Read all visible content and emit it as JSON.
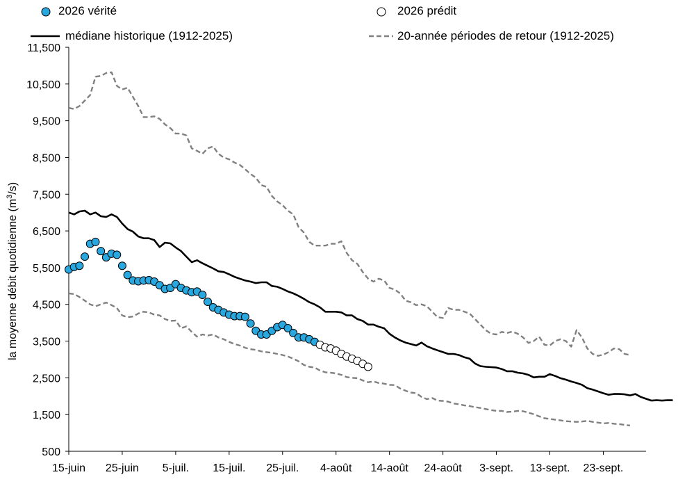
{
  "chart_data": {
    "type": "line",
    "ylabel_main": "la moyenne débit quotidienne (m",
    "ylabel_sup": "3",
    "ylabel_end": "/s)",
    "ylim": [
      500,
      11500
    ],
    "yticks": [
      500,
      1500,
      2500,
      3500,
      4500,
      5500,
      6500,
      7500,
      8500,
      9500,
      10500,
      11500
    ],
    "ytick_labels": [
      "500",
      "1,500",
      "2,500",
      "3,500",
      "4,500",
      "5,500",
      "6,500",
      "7,500",
      "8,500",
      "9,500",
      "10,500",
      "11,500"
    ],
    "x_range_days": [
      0,
      108
    ],
    "xtick_labels": [
      "15-juin",
      "25-juin",
      "5-juil.",
      "15-juil.",
      "25-juil.",
      "4-août",
      "14-août",
      "24-août",
      "3-sept.",
      "13-sept.",
      "23-sept."
    ],
    "xtick_days": [
      0,
      10,
      20,
      30,
      40,
      50,
      60,
      70,
      80,
      90,
      100
    ],
    "legend": {
      "observed": "2026 vérité",
      "predicted": "2026 prédit",
      "median": "médiane historique (1912-2025)",
      "return": "20-année périodes de retour (1912-2025)"
    },
    "series": [
      {
        "name": "médiane historique (1912-2025)",
        "style": "solid",
        "color": "#000000",
        "values": [
          7000,
          6950,
          7030,
          7050,
          6950,
          7000,
          6900,
          6880,
          6950,
          6880,
          6700,
          6550,
          6480,
          6350,
          6300,
          6300,
          6250,
          6060,
          6180,
          6160,
          6050,
          5950,
          5800,
          5650,
          5700,
          5620,
          5550,
          5480,
          5400,
          5380,
          5320,
          5250,
          5200,
          5150,
          5120,
          5080,
          5100,
          5100,
          5000,
          4980,
          4920,
          4850,
          4800,
          4730,
          4650,
          4560,
          4500,
          4420,
          4300,
          4300,
          4300,
          4280,
          4200,
          4200,
          4100,
          4050,
          3950,
          3950,
          3890,
          3850,
          3700,
          3600,
          3520,
          3460,
          3420,
          3380,
          3460,
          3360,
          3300,
          3250,
          3200,
          3150,
          3150,
          3120,
          3060,
          3020,
          2890,
          2820,
          2800,
          2790,
          2780,
          2740,
          2680,
          2680,
          2640,
          2620,
          2580,
          2510,
          2530,
          2530,
          2600,
          2550,
          2490,
          2450,
          2400,
          2360,
          2310,
          2220,
          2180,
          2130,
          2080,
          2040,
          2060,
          2060,
          2050,
          2020,
          2060,
          1980,
          1930,
          1880,
          1890,
          1880,
          1890,
          1890
        ]
      },
      {
        "name": "20-année périodes de retour (1912-2025) haut",
        "style": "dashed",
        "color": "#808080",
        "values": [
          9850,
          9820,
          9900,
          10050,
          10200,
          10700,
          10720,
          10800,
          10820,
          10450,
          10350,
          10400,
          10150,
          9900,
          9600,
          9600,
          9620,
          9550,
          9400,
          9300,
          9150,
          9150,
          9100,
          8750,
          8680,
          8600,
          8750,
          8800,
          8600,
          8500,
          8450,
          8360,
          8300,
          8180,
          8050,
          7950,
          7750,
          7700,
          7450,
          7300,
          7200,
          7050,
          6950,
          6600,
          6450,
          6200,
          6100,
          6100,
          6100,
          6150,
          6150,
          6220,
          5900,
          5700,
          5600,
          5380,
          5200,
          5120,
          5200,
          5150,
          4950,
          4900,
          4800,
          4600,
          4560,
          4480,
          4500,
          4450,
          4300,
          4150,
          4130,
          4400,
          4350,
          4350,
          4300,
          4250,
          4100,
          3950,
          3800,
          3700,
          3680,
          3750,
          3720,
          3760,
          3700,
          3600,
          3450,
          3500,
          3620,
          3400,
          3380,
          3500,
          3550,
          3500,
          3350,
          3800,
          3600,
          3300,
          3150,
          3100,
          3130,
          3200,
          3300,
          3280,
          3150,
          3120
        ]
      },
      {
        "name": "20-année périodes de retour (1912-2025) bas",
        "style": "dashed",
        "color": "#808080",
        "values": [
          4800,
          4780,
          4700,
          4600,
          4500,
          4450,
          4500,
          4550,
          4480,
          4400,
          4200,
          4150,
          4170,
          4250,
          4300,
          4280,
          4220,
          4200,
          4100,
          4050,
          4060,
          3850,
          3900,
          3750,
          3620,
          3680,
          3650,
          3680,
          3600,
          3550,
          3480,
          3420,
          3380,
          3320,
          3280,
          3260,
          3220,
          3200,
          3180,
          3150,
          3120,
          3080,
          3020,
          2950,
          2850,
          2800,
          2780,
          2700,
          2650,
          2640,
          2620,
          2580,
          2520,
          2500,
          2490,
          2430,
          2380,
          2400,
          2360,
          2340,
          2310,
          2300,
          2210,
          2150,
          2100,
          2080,
          1980,
          1920,
          1950,
          1880,
          1870,
          1850,
          1800,
          1780,
          1750,
          1730,
          1700,
          1680,
          1650,
          1620,
          1600,
          1600,
          1570,
          1580,
          1600,
          1590,
          1550,
          1510,
          1450,
          1400,
          1380,
          1360,
          1340,
          1320,
          1310,
          1300,
          1310,
          1330,
          1300,
          1280,
          1260,
          1270,
          1250,
          1240,
          1220,
          1200
        ]
      },
      {
        "name": "2026 vérité",
        "style": "marker-filled",
        "color": "#29a8e0",
        "values": [
          5450,
          5520,
          5550,
          5800,
          6150,
          6200,
          5950,
          5780,
          5880,
          5850,
          5550,
          5300,
          5150,
          5130,
          5150,
          5160,
          5120,
          5020,
          4920,
          4950,
          5050,
          4950,
          4880,
          4830,
          4850,
          4760,
          4570,
          4420,
          4350,
          4280,
          4220,
          4180,
          4180,
          4160,
          3980,
          3780,
          3680,
          3680,
          3780,
          3880,
          3940,
          3850,
          3720,
          3600,
          3600,
          3550,
          3480
        ]
      },
      {
        "name": "2026 prédit",
        "style": "marker-open",
        "color": "#000000",
        "start_day": 47,
        "values": [
          3400,
          3330,
          3300,
          3240,
          3150,
          3080,
          3020,
          2960,
          2880,
          2800
        ]
      }
    ]
  }
}
